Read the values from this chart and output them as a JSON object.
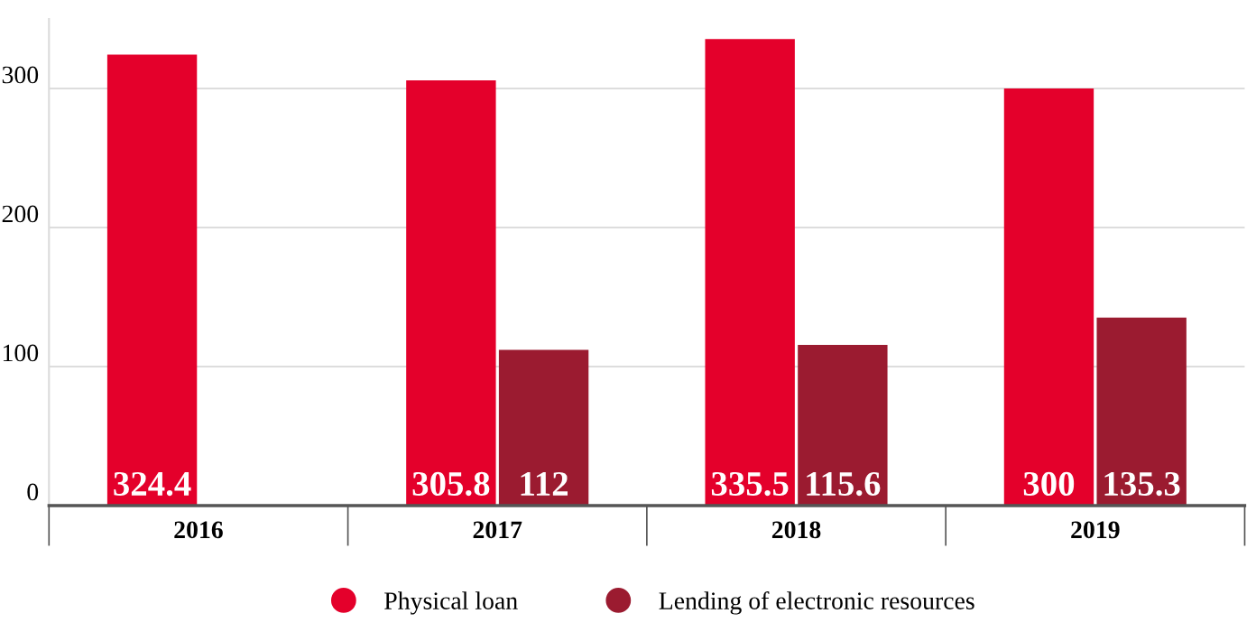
{
  "chart_data": {
    "type": "bar",
    "categories": [
      "2016",
      "2017",
      "2018",
      "2019"
    ],
    "series": [
      {
        "name": "Physical loan",
        "color": "#e4002b",
        "values": [
          324.4,
          305.8,
          335.5,
          300
        ]
      },
      {
        "name": "Lending of electronic resources",
        "color": "#9b1b30",
        "values": [
          null,
          112,
          115.6,
          135.3
        ]
      }
    ],
    "ylim": [
      0,
      350
    ],
    "yticks": [
      0,
      100,
      200,
      300
    ],
    "grid": "y",
    "legend": "bottom",
    "data_labels": true
  }
}
